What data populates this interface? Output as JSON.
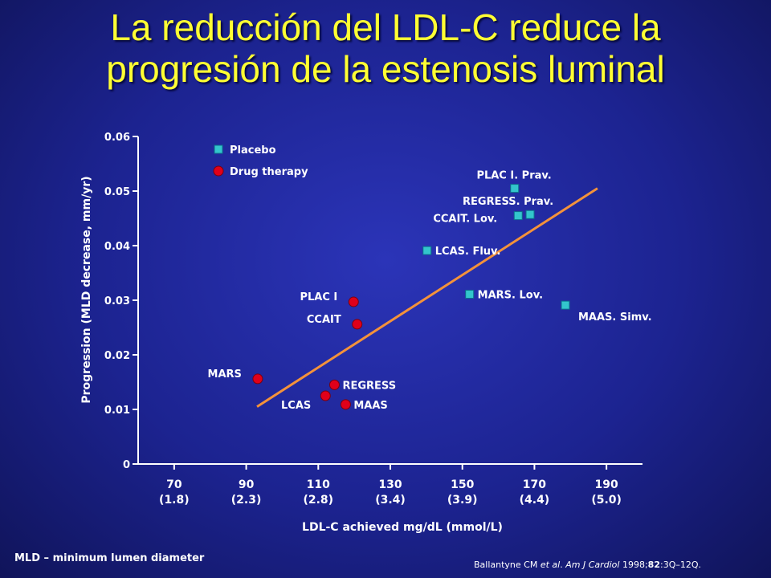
{
  "slide": {
    "title_line1": "La reducción del LDL-C  reduce la",
    "title_line2": "progresión de la estenosis luminal",
    "footnote": "MLD – minimum lumen diameter",
    "citation": {
      "authors": "Ballantyne CM ",
      "etal": "et al",
      "sep": ". ",
      "journal": "Am J Cardiol",
      "year": " 1998;",
      "volume": "82",
      "pages": ":3Q–12Q."
    }
  },
  "colors": {
    "placebo": "#33c5cc",
    "drug": "#e0001a",
    "regression": "#f4923a",
    "axis": "#ffffff",
    "title": "#ffff33"
  },
  "chart_data": {
    "type": "scatter",
    "xlabel": "LDL-C achieved mg/dL (mmol/L)",
    "ylabel": "Progression (MLD decrease, mm/yr)",
    "xlim": [
      60,
      200
    ],
    "ylim": [
      0,
      0.06
    ],
    "x_ticks": [
      {
        "value": 70,
        "label": "70",
        "sub": "(1.8)"
      },
      {
        "value": 90,
        "label": "90",
        "sub": "(2.3)"
      },
      {
        "value": 110,
        "label": "110",
        "sub": "(2.8)"
      },
      {
        "value": 130,
        "label": "130",
        "sub": "(3.4)"
      },
      {
        "value": 150,
        "label": "150",
        "sub": "(3.9)"
      },
      {
        "value": 170,
        "label": "170",
        "sub": "(4.4)"
      },
      {
        "value": 190,
        "label": "190",
        "sub": "(5.0)"
      }
    ],
    "y_ticks": [
      {
        "value": 0,
        "label": "0"
      },
      {
        "value": 0.01,
        "label": "0.01"
      },
      {
        "value": 0.02,
        "label": "0.02"
      },
      {
        "value": 0.03,
        "label": "0.03"
      },
      {
        "value": 0.04,
        "label": "0.04"
      },
      {
        "value": 0.05,
        "label": "0.05"
      },
      {
        "value": 0.06,
        "label": "0.06"
      }
    ],
    "legend": {
      "position": "top-left",
      "entries": [
        {
          "series": "placebo",
          "label": "Placebo"
        },
        {
          "series": "drug",
          "label": "Drug therapy"
        }
      ]
    },
    "series": [
      {
        "name": "Placebo",
        "key": "placebo",
        "marker": "square",
        "points": [
          {
            "label": "PLAC I. Prav.",
            "x": 164.5,
            "y": 0.0505,
            "label_anchor": "end",
            "label_side": "above"
          },
          {
            "label": "REGRESS. Prav.",
            "x": 168.8,
            "y": 0.0457,
            "label_anchor": "start-left",
            "label_side": "above"
          },
          {
            "label": "CCAIT. Lov.",
            "x": 165.5,
            "y": 0.0455,
            "label_anchor": "end",
            "label_side": "below"
          },
          {
            "label": "LCAS. Fluv.",
            "x": 140.2,
            "y": 0.0391,
            "label_anchor": "start",
            "label_side": "right"
          },
          {
            "label": "MARS. Lov.",
            "x": 152.0,
            "y": 0.0311,
            "label_anchor": "start",
            "label_side": "right"
          },
          {
            "label": "MAAS. Simv.",
            "x": 178.6,
            "y": 0.0291,
            "label_anchor": "start",
            "label_side": "below-right"
          }
        ]
      },
      {
        "name": "Drug therapy",
        "key": "drug",
        "marker": "circle",
        "points": [
          {
            "label": "PLAC I",
            "x": 119.8,
            "y": 0.0297,
            "label_anchor": "end",
            "label_side": "left"
          },
          {
            "label": "CCAIT",
            "x": 120.8,
            "y": 0.0256,
            "label_anchor": "end",
            "label_side": "left"
          },
          {
            "label": "MARS",
            "x": 93.2,
            "y": 0.0156,
            "label_anchor": "end",
            "label_side": "left"
          },
          {
            "label": "REGRESS",
            "x": 114.5,
            "y": 0.0145,
            "label_anchor": "start",
            "label_side": "right"
          },
          {
            "label": "LCAS",
            "x": 112.0,
            "y": 0.0125,
            "label_anchor": "end",
            "label_side": "below-left"
          },
          {
            "label": "MAAS",
            "x": 117.6,
            "y": 0.0109,
            "label_anchor": "start",
            "label_side": "right"
          }
        ]
      }
    ],
    "regression_line": {
      "x1": 93.0,
      "y1": 0.0105,
      "x2": 187.5,
      "y2": 0.0505
    }
  }
}
